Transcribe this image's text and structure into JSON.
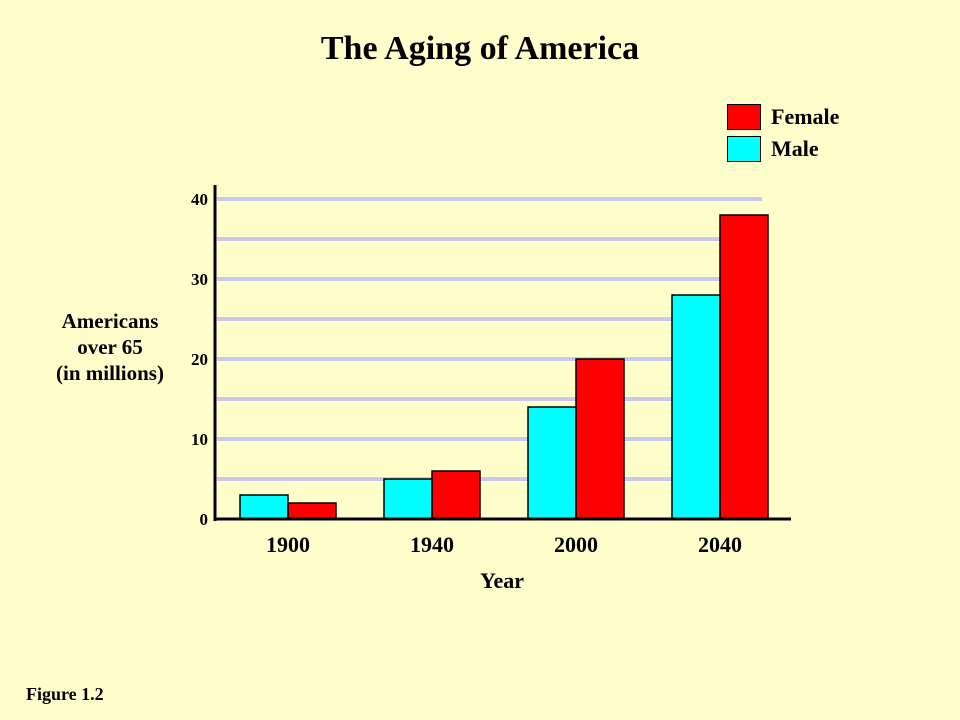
{
  "chart_data": {
    "type": "bar",
    "title": "The Aging of America",
    "xlabel": "Year",
    "ylabel": [
      "Americans",
      "over 65",
      "(in millions)"
    ],
    "categories": [
      "1900",
      "1940",
      "2000",
      "2040"
    ],
    "series": [
      {
        "name": "Male",
        "color": "#00FFFF",
        "values": [
          3,
          5,
          14,
          28
        ]
      },
      {
        "name": "Female",
        "color": "#FF0000",
        "values": [
          2,
          6,
          20,
          38
        ]
      }
    ],
    "ylim": [
      0,
      40
    ],
    "yticks": [
      "0",
      "10",
      "20",
      "30",
      "40"
    ],
    "ytick_values": [
      0,
      10,
      20,
      30,
      40
    ],
    "grid": true,
    "gridline_color": "#C8C8F0",
    "legend_position": "top-right",
    "legend_order": [
      "Female",
      "Male"
    ]
  },
  "caption": "Figure 1.2"
}
